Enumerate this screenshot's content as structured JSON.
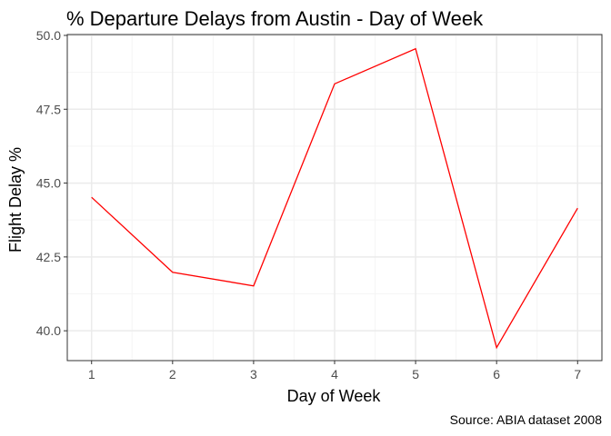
{
  "chart_data": {
    "type": "line",
    "title": "% Departure Delays from Austin - Day of Week",
    "xlabel": "Day of Week",
    "ylabel": "Flight Delay %",
    "caption": "Source: ABIA dataset 2008",
    "x": [
      1,
      2,
      3,
      4,
      5,
      6,
      7
    ],
    "series": [
      {
        "values": [
          44.52,
          41.98,
          41.52,
          48.36,
          49.55,
          39.43,
          44.15
        ]
      }
    ],
    "xlim": [
      0.7,
      7.3
    ],
    "ylim": [
      38.99,
      50.03
    ],
    "xticks": [
      1,
      2,
      3,
      4,
      5,
      6,
      7
    ],
    "xtick_labels": [
      "1",
      "2",
      "3",
      "4",
      "5",
      "6",
      "7"
    ],
    "yticks": [
      40.0,
      42.5,
      45.0,
      47.5,
      50.0
    ],
    "ytick_labels": [
      "40.0",
      "42.5",
      "45.0",
      "47.5",
      "50.0"
    ],
    "grid": true,
    "colors": {
      "line": "#ff0000",
      "grid_major": "#ebebeb",
      "grid_minor": "#f5f5f5",
      "panel_border": "#333333",
      "tick_text": "#4d4d4d"
    }
  }
}
